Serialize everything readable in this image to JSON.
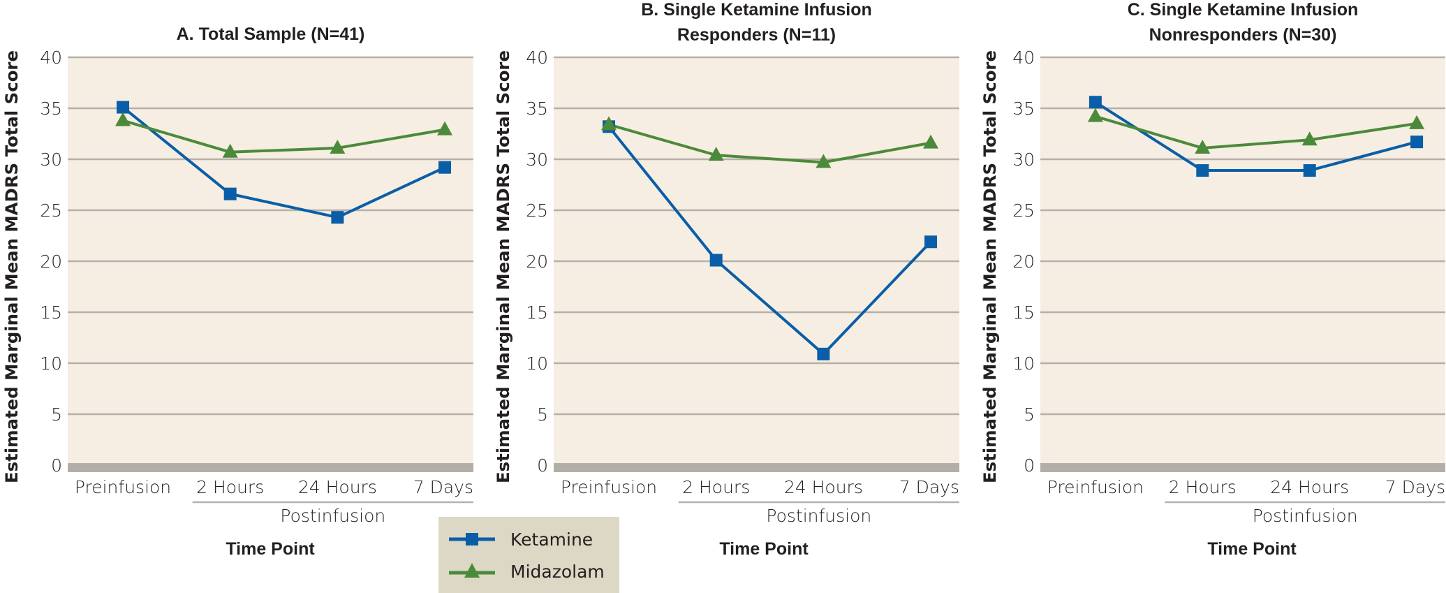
{
  "chart_data": [
    {
      "type": "line",
      "title_lines": [
        "A. Total Sample (N=41)"
      ],
      "ylabel": "Estimated Marginal Mean MADRS Total Score",
      "xlabel": "Time Point",
      "categories": [
        "Preinfusion",
        "2 Hours",
        "24 Hours",
        "7 Days"
      ],
      "category_group": {
        "label": "Postinfusion",
        "from": "2 Hours",
        "to": "7 Days"
      },
      "ylim": [
        0,
        40
      ],
      "yticks": [
        0,
        5,
        10,
        15,
        20,
        25,
        30,
        35,
        40
      ],
      "grid": true,
      "series": [
        {
          "name": "Ketamine",
          "marker": "square",
          "values": [
            35.1,
            26.6,
            24.3,
            29.2
          ]
        },
        {
          "name": "Midazolam",
          "marker": "triangle",
          "values": [
            33.8,
            30.7,
            31.1,
            32.9
          ]
        }
      ]
    },
    {
      "type": "line",
      "title_lines": [
        "B. Single Ketamine Infusion",
        "Responders (N=11)"
      ],
      "ylabel": "Estimated Marginal Mean MADRS Total Score",
      "xlabel": "Time Point",
      "categories": [
        "Preinfusion",
        "2 Hours",
        "24 Hours",
        "7 Days"
      ],
      "category_group": {
        "label": "Postinfusion",
        "from": "2 Hours",
        "to": "7 Days"
      },
      "ylim": [
        0,
        40
      ],
      "yticks": [
        0,
        5,
        10,
        15,
        20,
        25,
        30,
        35,
        40
      ],
      "grid": true,
      "series": [
        {
          "name": "Ketamine",
          "marker": "square",
          "values": [
            33.2,
            20.1,
            10.9,
            21.9
          ]
        },
        {
          "name": "Midazolam",
          "marker": "triangle",
          "values": [
            33.4,
            30.4,
            29.7,
            31.6
          ]
        }
      ]
    },
    {
      "type": "line",
      "title_lines": [
        "C. Single Ketamine Infusion",
        "Nonresponders (N=30)"
      ],
      "ylabel": "Estimated Marginal Mean MADRS Total Score",
      "xlabel": "Time Point",
      "categories": [
        "Preinfusion",
        "2 Hours",
        "24 Hours",
        "7 Days"
      ],
      "category_group": {
        "label": "Postinfusion",
        "from": "2 Hours",
        "to": "7 Days"
      },
      "ylim": [
        0,
        40
      ],
      "yticks": [
        0,
        5,
        10,
        15,
        20,
        25,
        30,
        35,
        40
      ],
      "grid": true,
      "series": [
        {
          "name": "Ketamine",
          "marker": "square",
          "values": [
            35.6,
            28.9,
            28.9,
            31.7
          ]
        },
        {
          "name": "Midazolam",
          "marker": "triangle",
          "values": [
            34.2,
            31.1,
            31.9,
            33.5
          ]
        }
      ]
    }
  ],
  "legend": {
    "placement": "bottom-center",
    "items": [
      {
        "label": "Ketamine",
        "marker": "square",
        "color": "#0a5ea8"
      },
      {
        "label": "Midazolam",
        "marker": "triangle",
        "color": "#4c8a3b"
      }
    ]
  },
  "colors": {
    "plot_background": "#f6eee2",
    "gridline": "#b7b0a8",
    "zero_band": "#b3aea8",
    "legend_background": "#ddd8c5",
    "text": "#231f20"
  }
}
